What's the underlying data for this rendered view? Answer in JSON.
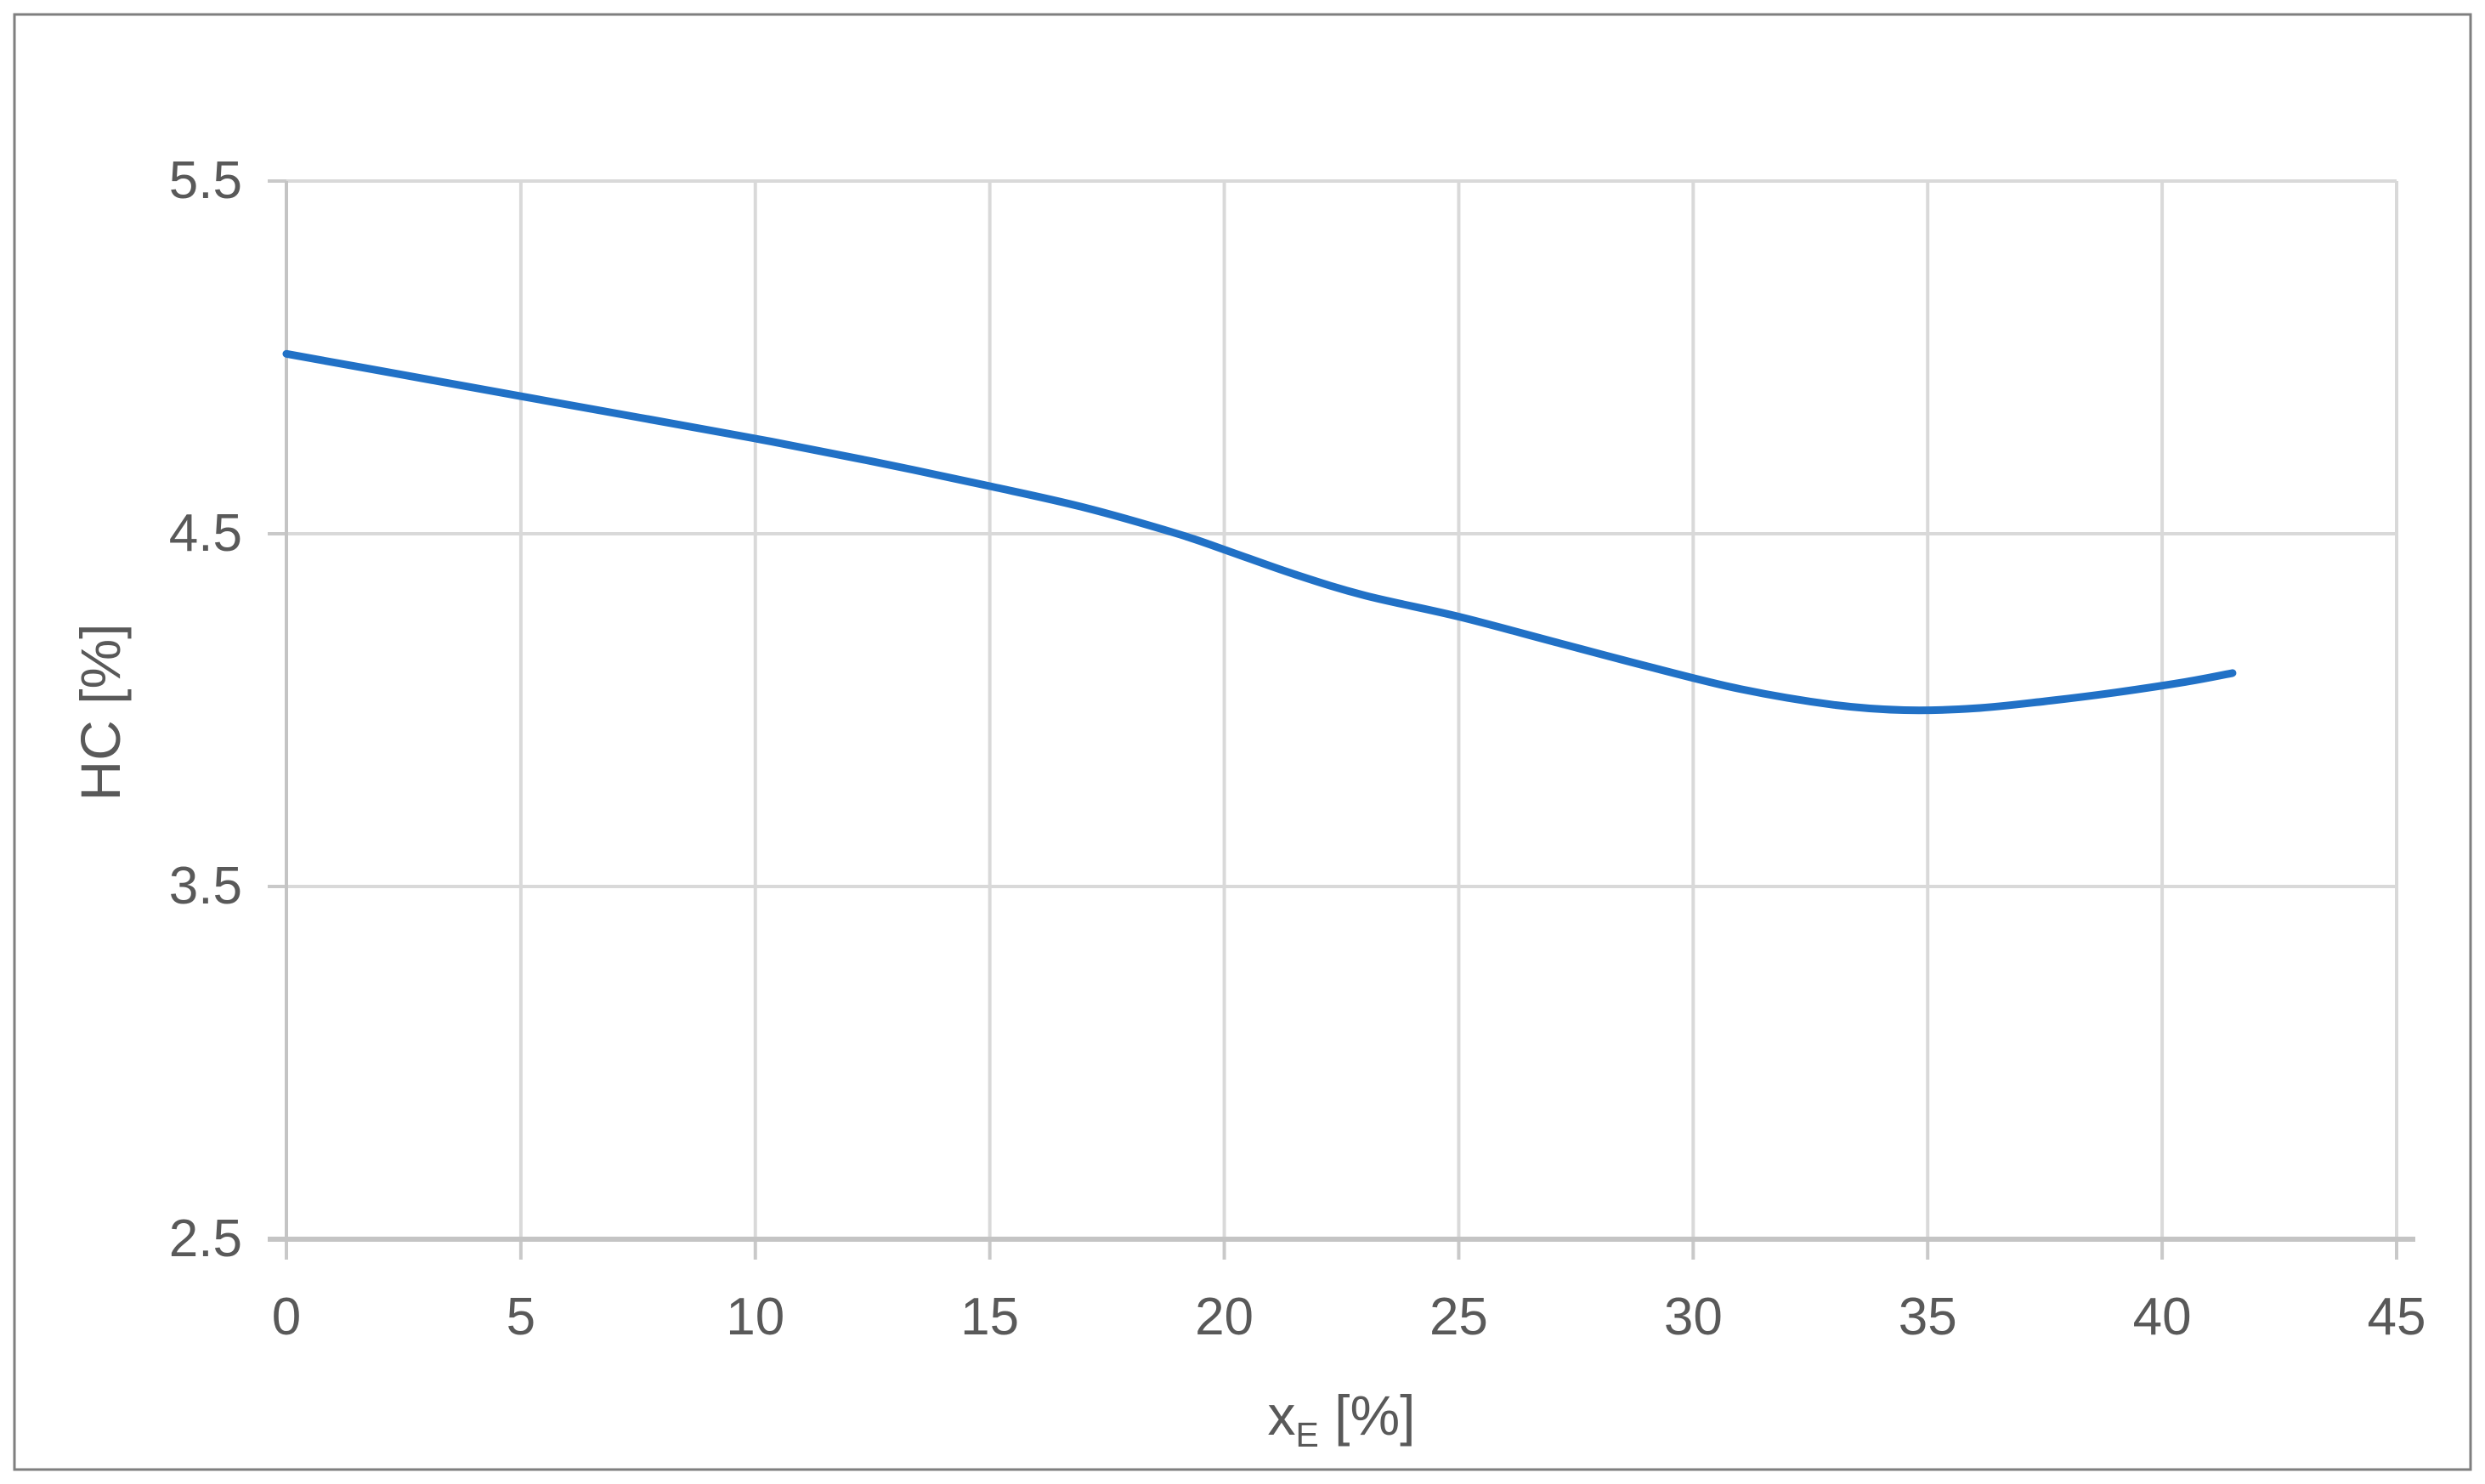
{
  "chart_data": {
    "type": "line",
    "title": "",
    "xlabel": {
      "main": "x",
      "sub": "E",
      "unit": " [%]"
    },
    "ylabel": "HC [%]",
    "xlim": [
      0,
      45
    ],
    "ylim": [
      2.5,
      5.5
    ],
    "x_tick_step": 5,
    "y_tick_step": 1.0,
    "x_tick_labels": [
      "0",
      "5",
      "10",
      "15",
      "20",
      "25",
      "30",
      "35",
      "40",
      "45"
    ],
    "y_tick_labels": [
      "5.5",
      "4.5",
      "3.5",
      "2.5"
    ],
    "y_tick_values": [
      5.5,
      4.5,
      3.5,
      2.5
    ],
    "x_tick_values": [
      0,
      5,
      10,
      15,
      20,
      25,
      30,
      35,
      40,
      45
    ],
    "grid": true,
    "legend_position": "none",
    "series": [
      {
        "name": "HC",
        "color": "#2171C6",
        "smooth": true,
        "points": [
          [
            0,
            5.01
          ],
          [
            2.5,
            4.95
          ],
          [
            5,
            4.89
          ],
          [
            7.5,
            4.83
          ],
          [
            10,
            4.77
          ],
          [
            12.5,
            4.705
          ],
          [
            15,
            4.635
          ],
          [
            17,
            4.575
          ],
          [
            19,
            4.5
          ],
          [
            20,
            4.455
          ],
          [
            21.5,
            4.385
          ],
          [
            23,
            4.325
          ],
          [
            25,
            4.265
          ],
          [
            27,
            4.195
          ],
          [
            29,
            4.125
          ],
          [
            31,
            4.06
          ],
          [
            33,
            4.015
          ],
          [
            34.5,
            4.0
          ],
          [
            36,
            4.005
          ],
          [
            37.5,
            4.025
          ],
          [
            39,
            4.05
          ],
          [
            40.5,
            4.08
          ],
          [
            41.5,
            4.105
          ]
        ]
      }
    ]
  },
  "colors": {
    "line": "#2171C6",
    "gridline": "#D9D9D9",
    "axis_line": "#C4C4C4",
    "tick_mark": "#C9C9C9",
    "text": "#595959",
    "outer_border": "#7F7F7F",
    "background": "#FFFFFF"
  }
}
